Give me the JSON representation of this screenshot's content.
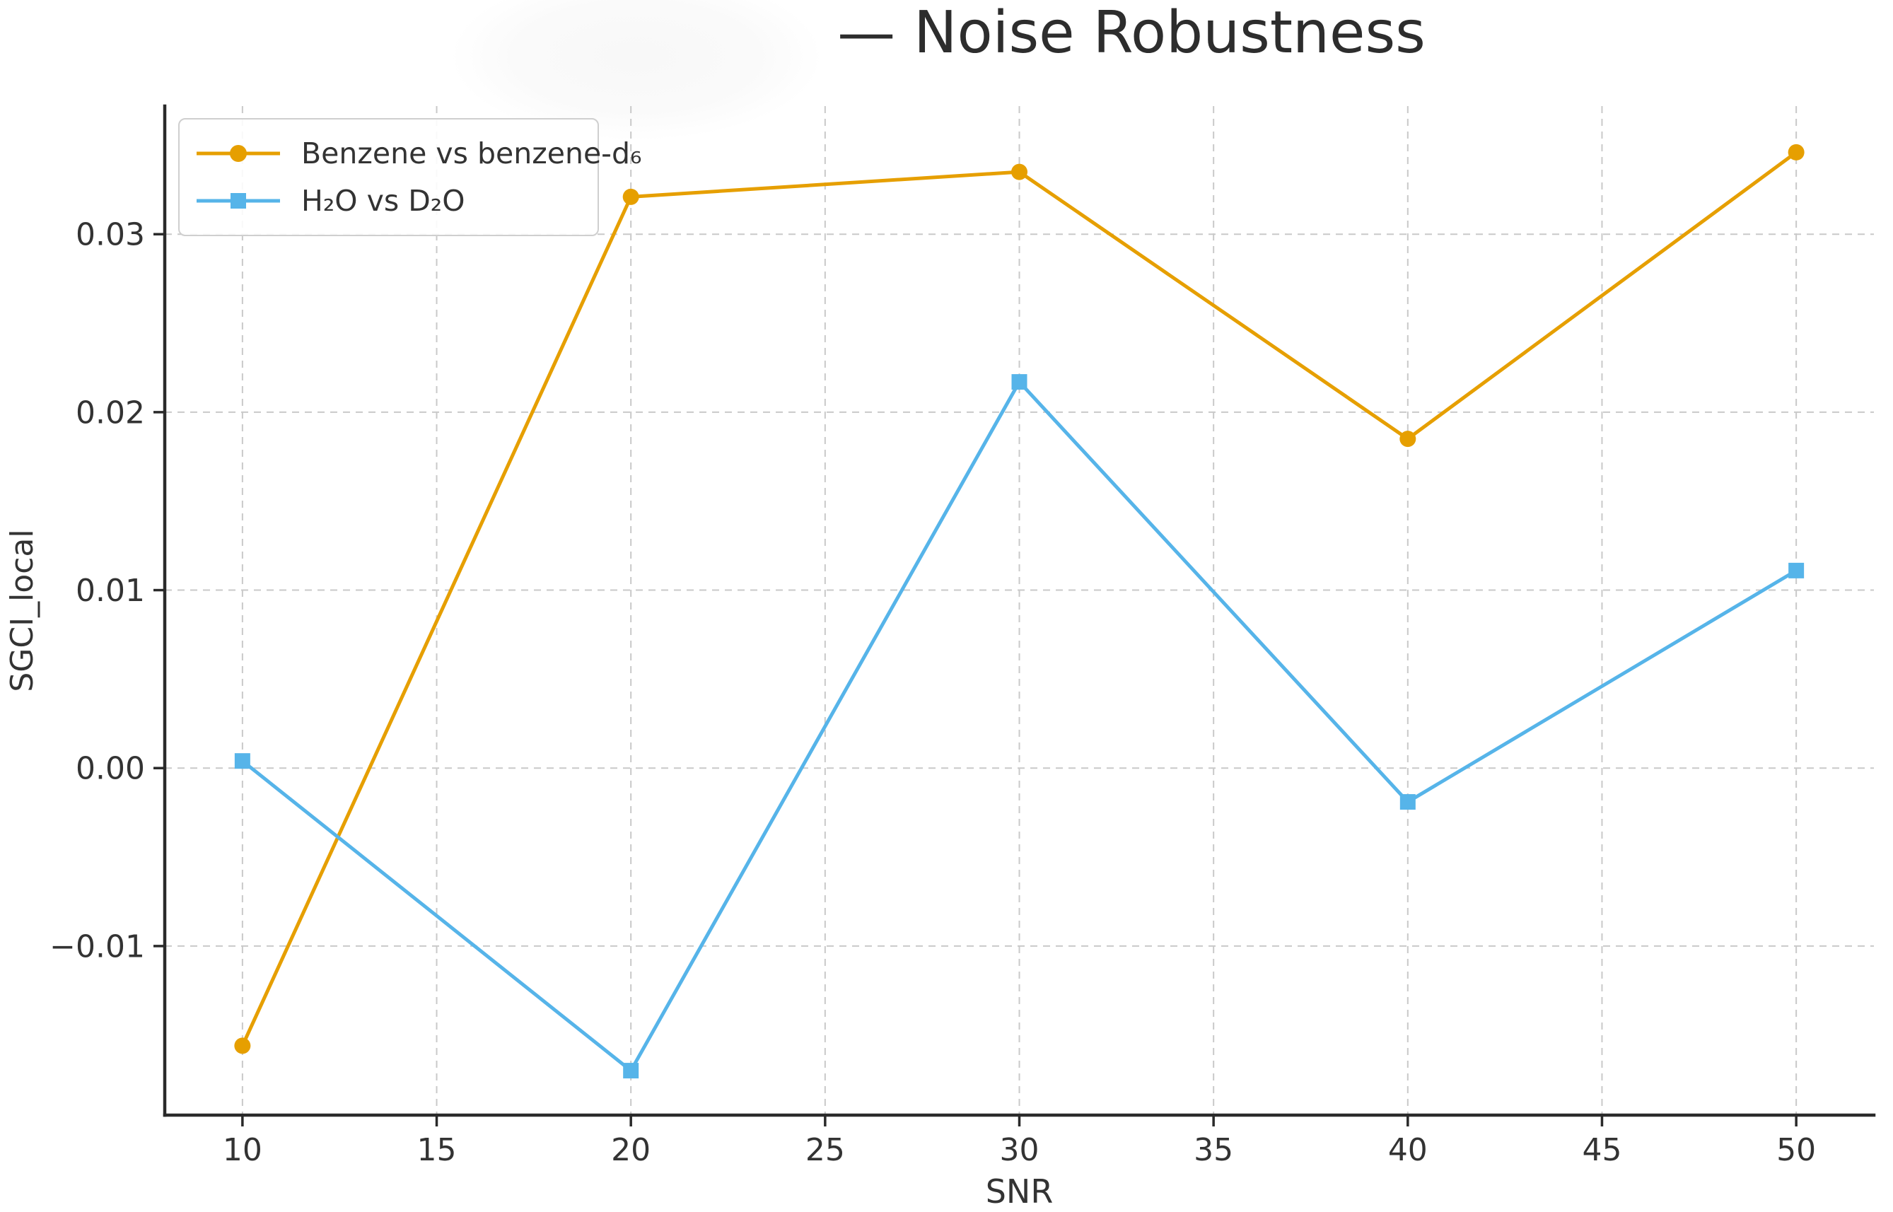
{
  "chart_data": {
    "type": "line",
    "title": "— Noise Robustness",
    "xlabel": "SNR",
    "ylabel": "SGCI_local",
    "xlim": [
      8,
      52
    ],
    "ylim": [
      -0.0195,
      0.0372
    ],
    "grid": true,
    "legend_position": "upper-left",
    "xticks": [
      {
        "v": 10,
        "label": "10"
      },
      {
        "v": 15,
        "label": "15"
      },
      {
        "v": 20,
        "label": "20"
      },
      {
        "v": 25,
        "label": "25"
      },
      {
        "v": 30,
        "label": "30"
      },
      {
        "v": 35,
        "label": "35"
      },
      {
        "v": 40,
        "label": "40"
      },
      {
        "v": 45,
        "label": "45"
      },
      {
        "v": 50,
        "label": "50"
      }
    ],
    "yticks": [
      {
        "v": -0.01,
        "label": "−0.01"
      },
      {
        "v": 0.0,
        "label": "0.00"
      },
      {
        "v": 0.01,
        "label": "0.01"
      },
      {
        "v": 0.02,
        "label": "0.02"
      },
      {
        "v": 0.03,
        "label": "0.03"
      }
    ],
    "series": [
      {
        "name": "Benzene vs benzene-d₆",
        "color": "#E69F00",
        "marker": "circle",
        "x": [
          10,
          20,
          30,
          40,
          50
        ],
        "y": [
          -0.0156,
          0.0321,
          0.0335,
          0.0185,
          0.0346
        ]
      },
      {
        "name": "H₂O vs D₂O",
        "color": "#56B4E9",
        "marker": "square",
        "x": [
          10,
          20,
          30,
          40,
          50
        ],
        "y": [
          0.0004,
          -0.017,
          0.0217,
          -0.0019,
          0.0111
        ]
      }
    ],
    "colors": {
      "grid": "#c9c9c9",
      "spine": "#2a2a2a",
      "text": "#333333"
    }
  }
}
